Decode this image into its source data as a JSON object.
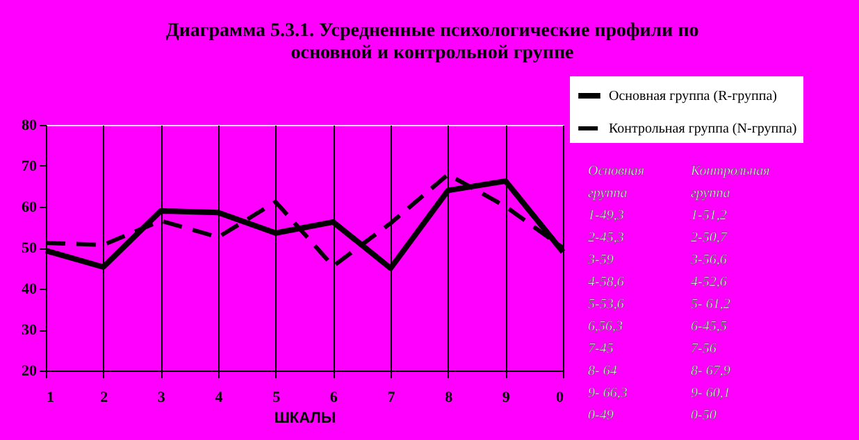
{
  "chart_data": {
    "type": "line",
    "title": [
      "Диаграмма 5.3.1. Усредненные психологические профили по",
      "основной и контрольной группе"
    ],
    "xlabel": "ШКАЛЫ",
    "categories": [
      "1",
      "2",
      "3",
      "4",
      "5",
      "6",
      "7",
      "8",
      "9",
      "0"
    ],
    "series": [
      {
        "name": "Основная группа (R-группа)",
        "color": "#000000",
        "line_style": "solid",
        "values": [
          49.3,
          45.3,
          59,
          58.6,
          53.6,
          56.3,
          45,
          64,
          66.3,
          49
        ]
      },
      {
        "name": "Контрольная группа (N-группа)",
        "color": "#000000",
        "line_style": "dashed",
        "values": [
          51.2,
          50.7,
          56.6,
          52.6,
          61.2,
          45.5,
          56,
          67.9,
          60.1,
          50
        ]
      }
    ],
    "ylim": [
      20,
      80
    ],
    "yticks": [
      20,
      30,
      40,
      50,
      60,
      70,
      80
    ],
    "grid": "x",
    "legend": "top right",
    "annotations": [
      "Основная",
      "группа",
      "1-49,3",
      "2-45,3",
      "3-59",
      "4-58,6",
      "5-53,6",
      "6,56,3",
      "7-45",
      "8- 64",
      "9- 66,3",
      "0-49",
      "Контрольная",
      "группа",
      "1-51,2",
      "2-50,7",
      "3-56,6",
      "4-52,6",
      "5- 61,2",
      "6-45,5",
      "7-56",
      "8- 67,9",
      "9- 60,1",
      "0-50"
    ]
  }
}
